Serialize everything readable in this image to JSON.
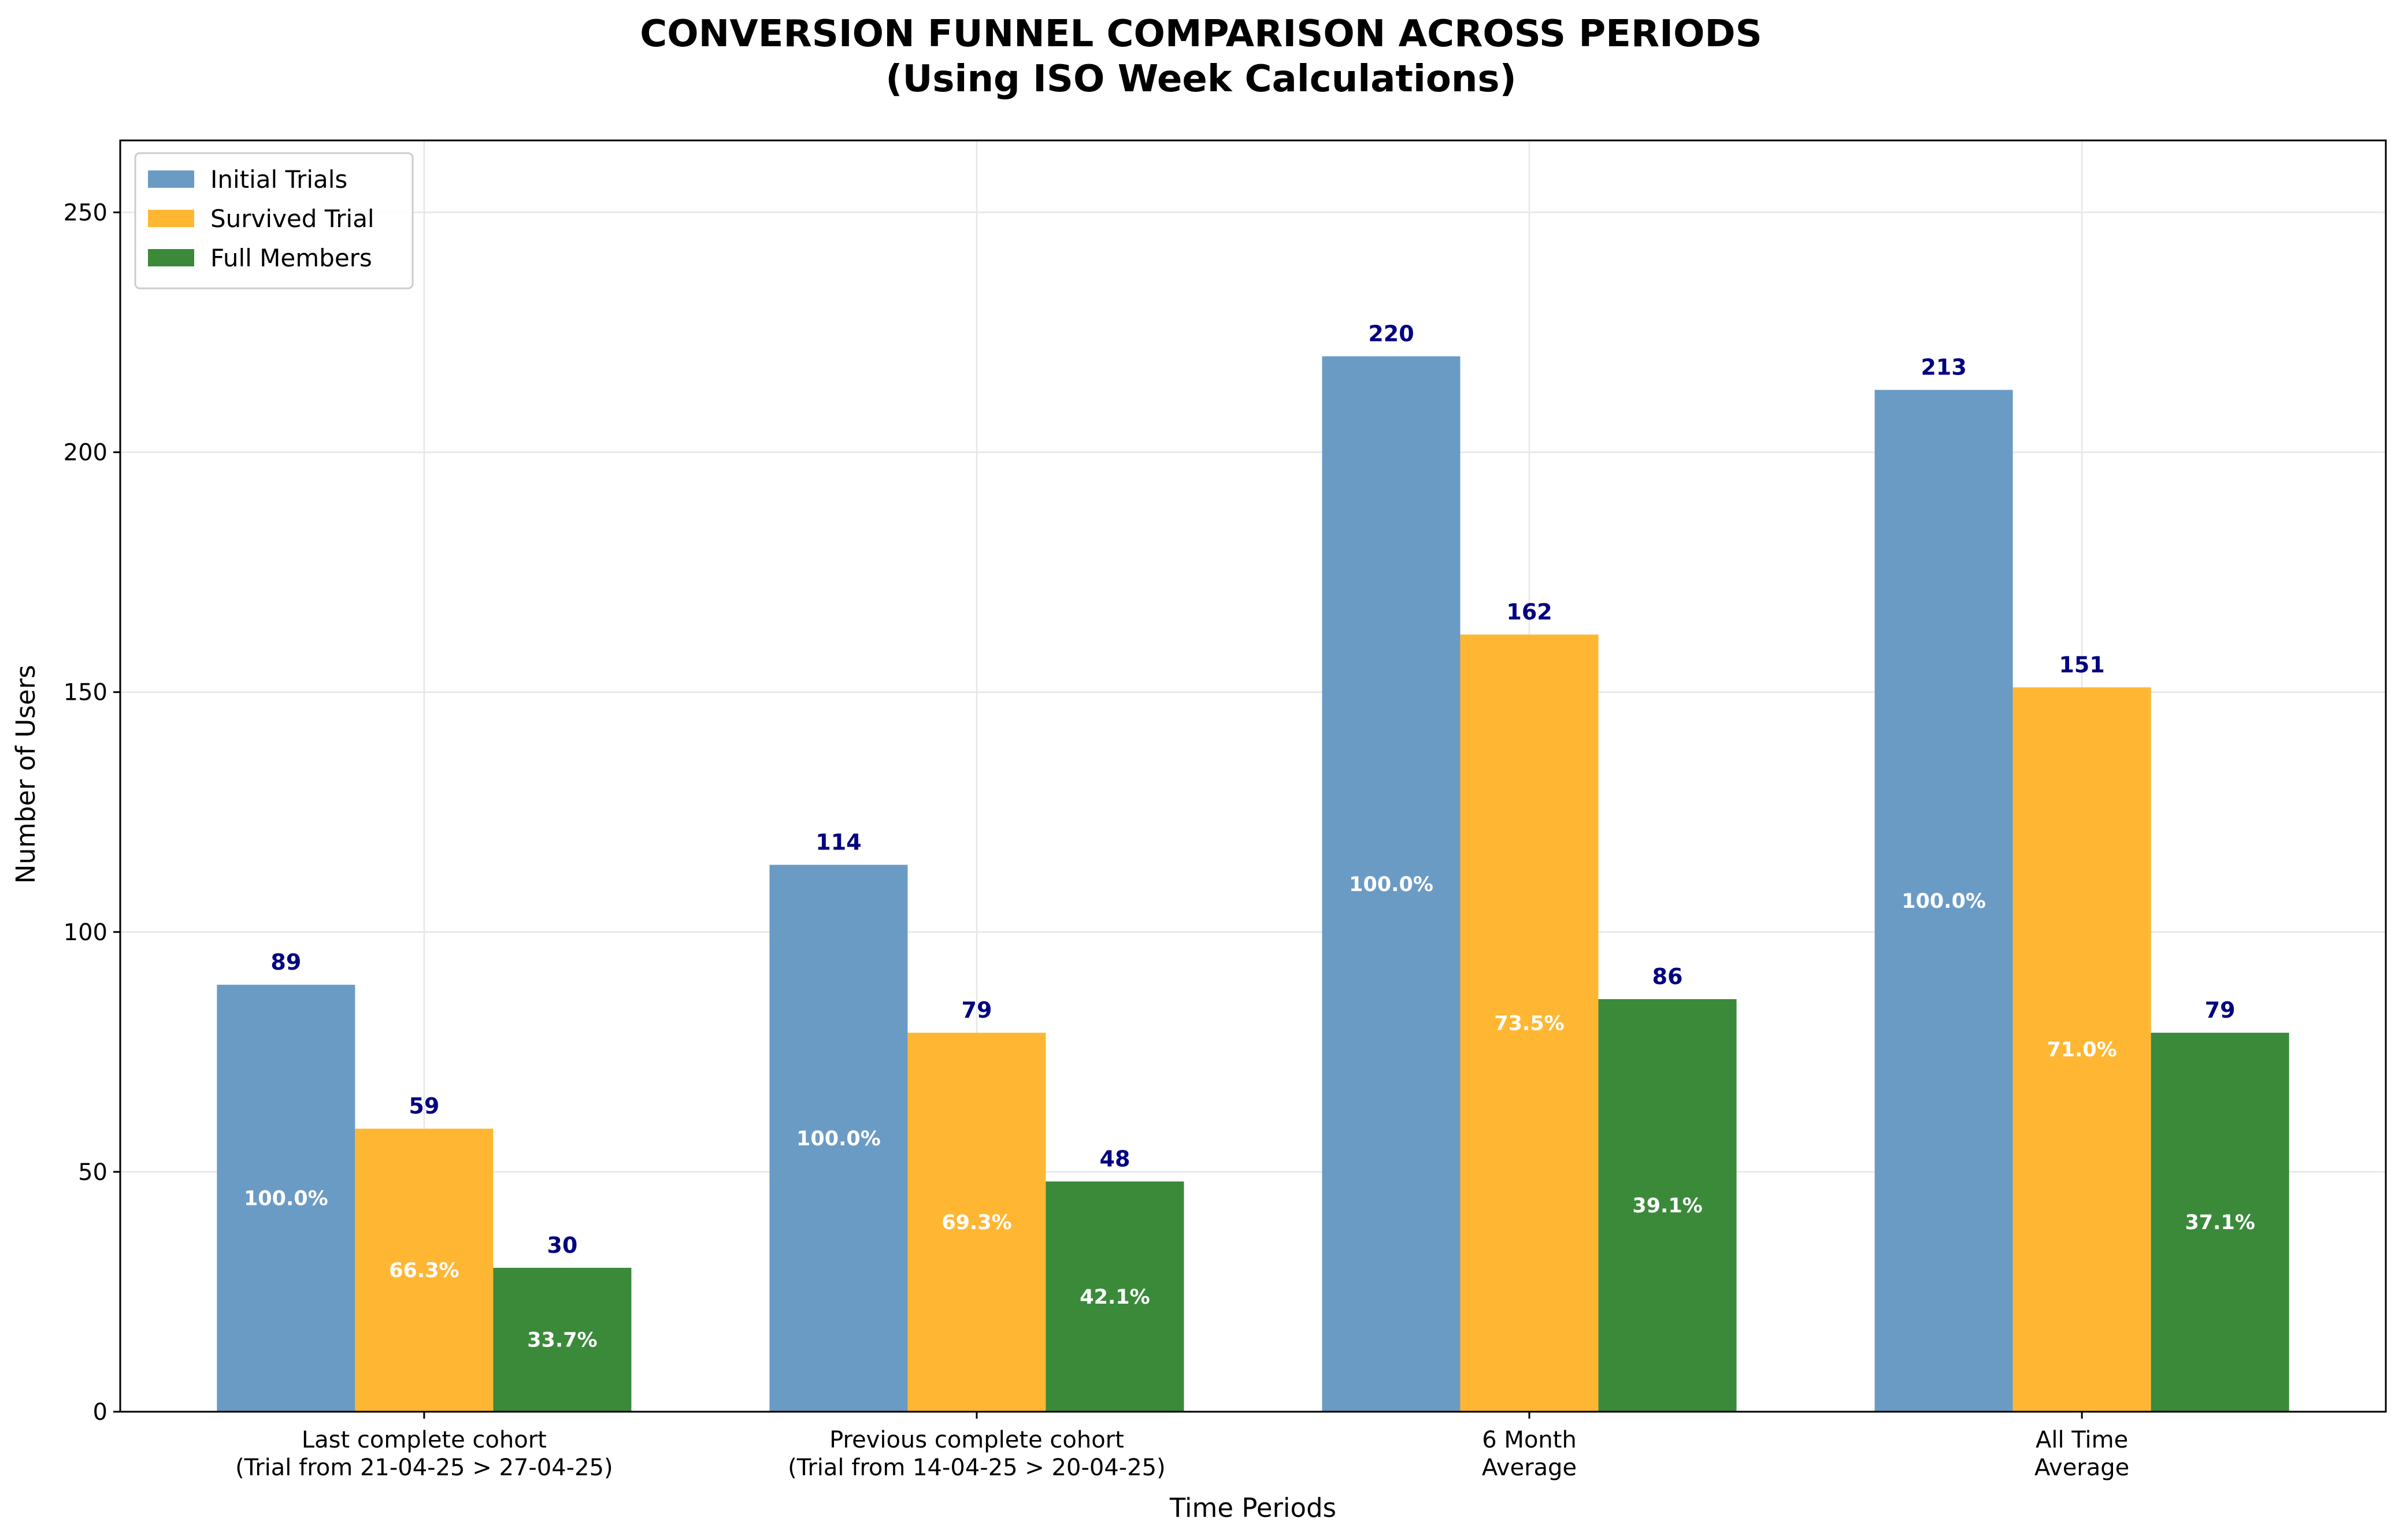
{
  "chart_data": {
    "type": "bar",
    "title_line1": "CONVERSION FUNNEL COMPARISON ACROSS PERIODS",
    "title_line2": "(Using ISO Week Calculations)",
    "xlabel": "Time Periods",
    "ylabel": "Number of Users",
    "ylim": [
      0,
      265
    ],
    "yticks": [
      0,
      50,
      100,
      150,
      200,
      250
    ],
    "grid": true,
    "legend_position": "top-left",
    "categories": [
      [
        "Last complete cohort",
        "(Trial from 21-04-25 > 27-04-25)"
      ],
      [
        "Previous complete cohort",
        "(Trial from 14-04-25 > 20-04-25)"
      ],
      [
        "6 Month",
        "Average"
      ],
      [
        "All Time",
        "Average"
      ]
    ],
    "series": [
      {
        "name": "Initial Trials",
        "color": "#6a9bc5",
        "values": [
          89,
          114,
          220,
          213
        ],
        "value_labels": [
          "89",
          "114",
          "220",
          "213"
        ],
        "percent_labels": [
          "100.0%",
          "100.0%",
          "100.0%",
          "100.0%"
        ]
      },
      {
        "name": "Survived Trial",
        "color": "#ffb733",
        "values": [
          59,
          79,
          162,
          151
        ],
        "value_labels": [
          "59",
          "79",
          "162",
          "151"
        ],
        "percent_labels": [
          "66.3%",
          "69.3%",
          "73.5%",
          "71.0%"
        ]
      },
      {
        "name": "Full Members",
        "color": "#3a8a3a",
        "values": [
          30,
          48,
          86,
          79
        ],
        "value_labels": [
          "30",
          "48",
          "86",
          "79"
        ],
        "percent_labels": [
          "33.7%",
          "42.1%",
          "39.1%",
          "37.1%"
        ]
      }
    ]
  }
}
